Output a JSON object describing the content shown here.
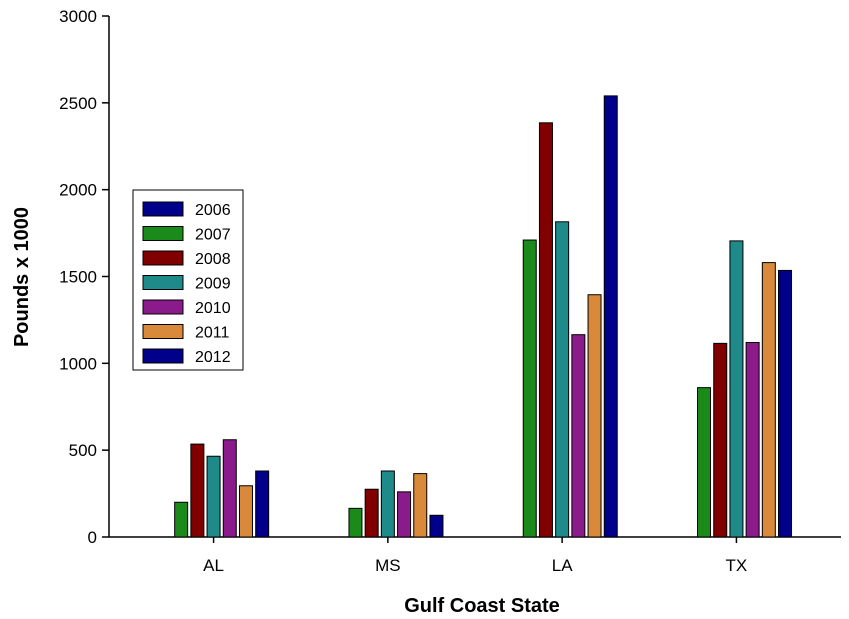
{
  "chart_data": {
    "type": "bar",
    "xlabel": "Gulf Coast State",
    "ylabel": "Pounds x 1000",
    "ylim": [
      0,
      3000
    ],
    "yticks": [
      "0",
      "500",
      "1000",
      "1500",
      "2000",
      "2500",
      "3000"
    ],
    "categories": [
      "AL",
      "MS",
      "LA",
      "TX"
    ],
    "legend_position": "left",
    "series": [
      {
        "name": "2006",
        "color": "#00008b",
        "values": [
          null,
          null,
          null,
          null
        ]
      },
      {
        "name": "2007",
        "color": "#1a8a1a",
        "values": [
          200,
          165,
          1710,
          860
        ]
      },
      {
        "name": "2008",
        "color": "#800000",
        "values": [
          535,
          275,
          2385,
          1115
        ]
      },
      {
        "name": "2009",
        "color": "#1f8a8a",
        "values": [
          465,
          380,
          1815,
          1705
        ]
      },
      {
        "name": "2010",
        "color": "#8b1a8b",
        "values": [
          560,
          260,
          1165,
          1120
        ]
      },
      {
        "name": "2011",
        "color": "#d9893a",
        "values": [
          295,
          365,
          1395,
          1580
        ]
      },
      {
        "name": "2012",
        "color": "#00008b",
        "values": [
          380,
          125,
          2540,
          1535
        ]
      }
    ]
  }
}
